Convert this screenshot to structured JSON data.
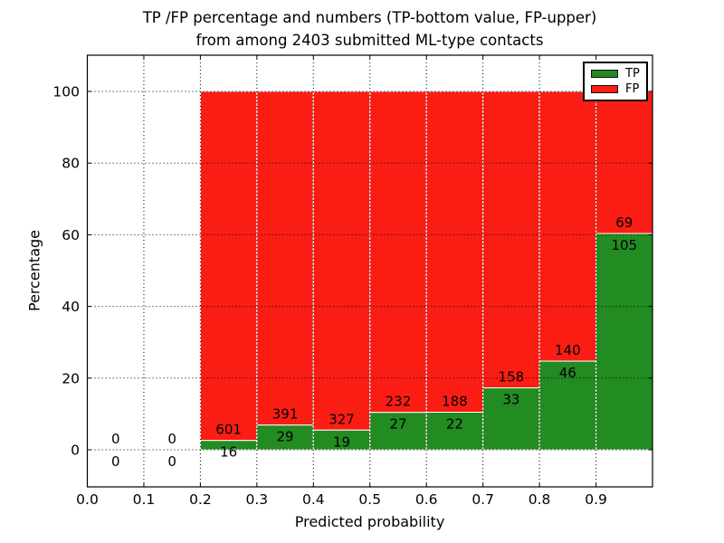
{
  "figure": {
    "title_line1": "TP /FP percentage and numbers (TP-bottom value, FP-upper)",
    "title_line2": "from among 2403 submitted ML-type contacts"
  },
  "chart_data": {
    "type": "bar",
    "stacked": true,
    "title": "TP /FP percentage and numbers (TP-bottom value, FP-upper) from among 2403 submitted ML-type contacts",
    "total_submitted": 2403,
    "xlabel": "Predicted probability",
    "ylabel": "Percentage",
    "xlim": [
      0.0,
      1.0
    ],
    "ylim": [
      -10,
      110
    ],
    "xticks": [
      "0.0",
      "0.1",
      "0.2",
      "0.3",
      "0.4",
      "0.5",
      "0.6",
      "0.7",
      "0.8",
      "0.9"
    ],
    "xtick_values": [
      0.0,
      0.1,
      0.2,
      0.3,
      0.4,
      0.5,
      0.6,
      0.7,
      0.8,
      0.9
    ],
    "yticks": [
      0,
      20,
      40,
      60,
      80,
      100
    ],
    "grid": "dotted, drawn above bars",
    "legend_position": "upper right",
    "legend": {
      "entries": [
        {
          "label": "TP",
          "color": "#228b22"
        },
        {
          "label": "FP",
          "color": "#fa1d14"
        }
      ]
    },
    "colors": {
      "tp": "#228b22",
      "fp": "#fa1d14",
      "bar_edge": "#ffffff",
      "grid": "#000000",
      "text": "#000000"
    },
    "bins": [
      {
        "x_start": 0.0,
        "x_end": 0.1,
        "tp": 0,
        "fp": 0,
        "tp_pct": 0
      },
      {
        "x_start": 0.1,
        "x_end": 0.2,
        "tp": 0,
        "fp": 0,
        "tp_pct": 0
      },
      {
        "x_start": 0.2,
        "x_end": 0.3,
        "tp": 16,
        "fp": 601,
        "tp_pct": 2.59
      },
      {
        "x_start": 0.3,
        "x_end": 0.4,
        "tp": 29,
        "fp": 391,
        "tp_pct": 6.9
      },
      {
        "x_start": 0.4,
        "x_end": 0.5,
        "tp": 19,
        "fp": 327,
        "tp_pct": 5.49
      },
      {
        "x_start": 0.5,
        "x_end": 0.6,
        "tp": 27,
        "fp": 232,
        "tp_pct": 10.42
      },
      {
        "x_start": 0.6,
        "x_end": 0.7,
        "tp": 22,
        "fp": 188,
        "tp_pct": 10.48
      },
      {
        "x_start": 0.7,
        "x_end": 0.8,
        "tp": 33,
        "fp": 158,
        "tp_pct": 17.28
      },
      {
        "x_start": 0.8,
        "x_end": 0.9,
        "tp": 46,
        "fp": 140,
        "tp_pct": 24.73
      },
      {
        "x_start": 0.9,
        "x_end": 1.0,
        "tp": 105,
        "fp": 69,
        "tp_pct": 60.34
      }
    ]
  }
}
